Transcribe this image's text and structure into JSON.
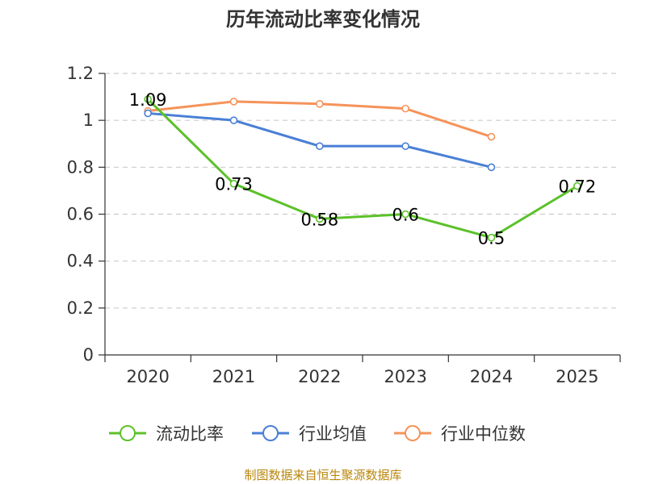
{
  "chart_data": {
    "type": "line",
    "title": "历年流动比率变化情况",
    "categories": [
      "2020",
      "2021",
      "2022",
      "2023",
      "2024",
      "2025"
    ],
    "ylim": [
      0,
      1.2
    ],
    "yticks": [
      0,
      0.2,
      0.4,
      0.6,
      0.8,
      1,
      1.2
    ],
    "ytick_labels": [
      "0",
      "0.2",
      "0.4",
      "0.6",
      "0.8",
      "1",
      "1.2"
    ],
    "grid": true,
    "legend_position": "bottom-center",
    "series": [
      {
        "name": "流动比率",
        "color": "#5cc12a",
        "values": [
          1.09,
          0.73,
          0.58,
          0.6,
          0.5,
          0.72
        ],
        "data_labels": [
          "1.09",
          "0.73",
          "0.58",
          "0.6",
          "0.5",
          "0.72"
        ]
      },
      {
        "name": "行业均值",
        "color": "#4a7fd6",
        "values": [
          1.03,
          1.0,
          0.89,
          0.89,
          0.8,
          null
        ]
      },
      {
        "name": "行业中位数",
        "color": "#f5935a",
        "values": [
          1.04,
          1.08,
          1.07,
          1.05,
          0.93,
          null
        ]
      }
    ]
  },
  "footer": {
    "source": "制图数据来自恒生聚源数据库"
  }
}
